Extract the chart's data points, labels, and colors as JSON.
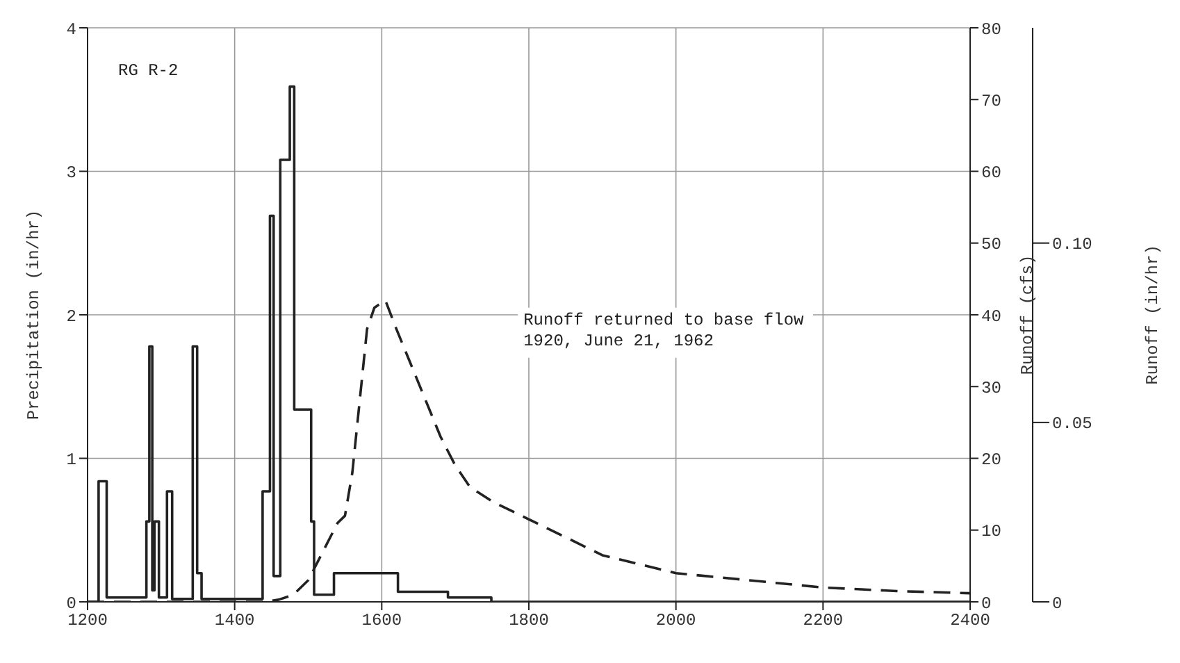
{
  "chart_data": {
    "type": "line",
    "xlabel": null,
    "ylabel": "Precipitation (in/hr)",
    "y2label": "Runoff (cfs)",
    "y3label": "Runoff (in/hr)",
    "xlim": [
      1200,
      2400
    ],
    "xticks": [
      1200,
      1400,
      1600,
      1800,
      2000,
      2200,
      2400
    ],
    "ylim": [
      0,
      4
    ],
    "yticks": [
      0,
      1,
      2,
      3,
      4
    ],
    "y2lim": [
      0,
      80
    ],
    "y2ticks": [
      0,
      10,
      20,
      30,
      40,
      50,
      60,
      70,
      80
    ],
    "y3lim": [
      0,
      0.16
    ],
    "y3ticks": [
      0,
      0.05,
      {
        "value": 0.1,
        "label": "0.10"
      }
    ],
    "grid": true,
    "marker": "none",
    "annotations": [
      "RG  R-2",
      "Runoff returned to base flow\n1920, June 21, 1962"
    ],
    "series": [
      {
        "type": "step",
        "color": "#222222",
        "line_style": "solid",
        "x": [
          1200,
          1215,
          1226,
          1280,
          1284,
          1288,
          1291,
          1297,
          1308,
          1315,
          1343,
          1349,
          1355,
          1438,
          1448,
          1453,
          1462,
          1475,
          1481,
          1504,
          1508,
          1535,
          1622,
          1690,
          1749,
          2400
        ],
        "values": [
          0,
          0.84,
          0.03,
          0.56,
          1.78,
          0.08,
          0.56,
          0.03,
          0.77,
          0.02,
          1.78,
          0.2,
          0.02,
          0.77,
          2.69,
          0.18,
          3.08,
          3.59,
          1.34,
          0.56,
          0.05,
          0.2,
          0.07,
          0.03,
          0,
          0
        ]
      },
      {
        "axis": "y2",
        "color": "#222222",
        "line_style": "dashed",
        "x": [
          1200,
          1440,
          1460,
          1480,
          1500,
          1520,
          1540,
          1550,
          1560,
          1570,
          1580,
          1590,
          1605,
          1620,
          1640,
          1660,
          1680,
          1700,
          1720,
          1750,
          1780,
          1800,
          1850,
          1900,
          2000,
          2100,
          2200,
          2300,
          2400
        ],
        "values": [
          0,
          0,
          0.3,
          1,
          3,
          7,
          11,
          12,
          18,
          28,
          38,
          41,
          42,
          38,
          33,
          28,
          23,
          19,
          16,
          14,
          12.5,
          11.5,
          9,
          6.5,
          4,
          3,
          2,
          1.5,
          1.2
        ]
      }
    ]
  }
}
